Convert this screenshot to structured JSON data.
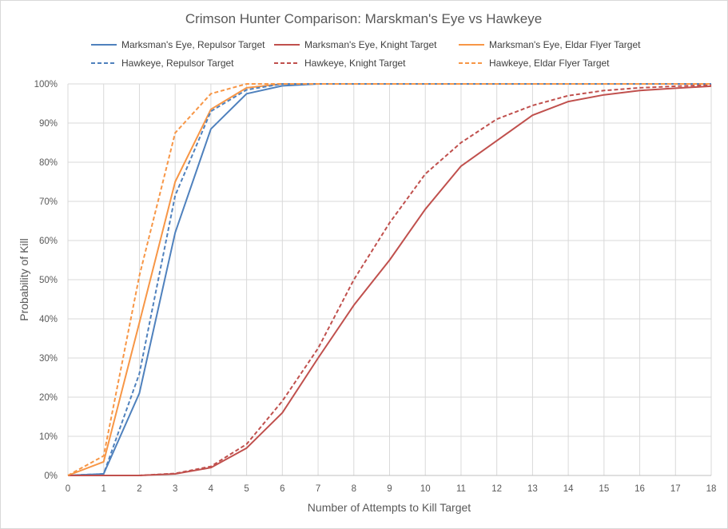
{
  "chart_data": {
    "type": "line",
    "title": "Crimson Hunter Comparison: Marskman's Eye vs Hawkeye",
    "xlabel": "Number of Attempts to Kill Target",
    "ylabel": "Probability of Kill",
    "x": [
      0,
      1,
      2,
      3,
      4,
      5,
      6,
      7,
      8,
      9,
      10,
      11,
      12,
      13,
      14,
      15,
      16,
      17,
      18
    ],
    "x_ticks": [
      "0",
      "1",
      "2",
      "3",
      "4",
      "5",
      "6",
      "7",
      "8",
      "9",
      "10",
      "11",
      "12",
      "13",
      "14",
      "15",
      "16",
      "17",
      "18"
    ],
    "xlim": [
      0,
      18
    ],
    "ylim": [
      0,
      100
    ],
    "y_ticks": [
      "0%",
      "10%",
      "20%",
      "30%",
      "40%",
      "50%",
      "60%",
      "70%",
      "80%",
      "90%",
      "100%"
    ],
    "grid": "both",
    "legend_position": "top",
    "series": [
      {
        "name": "Marksman's Eye, Repulsor Target",
        "color": "#4f81bd",
        "dash": "solid",
        "values": [
          0,
          0.4,
          21,
          62,
          88.5,
          97.5,
          99.5,
          100,
          100,
          100,
          100,
          100,
          100,
          100,
          100,
          100,
          100,
          100,
          100
        ]
      },
      {
        "name": "Marksman's Eye, Knight Target",
        "color": "#c0504d",
        "dash": "solid",
        "values": [
          0,
          0,
          0,
          0.4,
          2,
          7,
          16,
          30,
          43.5,
          55,
          68,
          79,
          85.5,
          92,
          95.5,
          97.2,
          98.3,
          98.9,
          99.4
        ]
      },
      {
        "name": "Marksman's Eye, Eldar Flyer Target",
        "color": "#f79646",
        "dash": "solid",
        "values": [
          0,
          3.5,
          39,
          75,
          93.5,
          99,
          100,
          100,
          100,
          100,
          100,
          100,
          100,
          100,
          100,
          100,
          100,
          100,
          100
        ]
      },
      {
        "name": "Hawkeye, Repulsor Target",
        "color": "#4f81bd",
        "dash": "dashed",
        "values": [
          0,
          0.4,
          26,
          71.5,
          93,
          98.5,
          100,
          100,
          100,
          100,
          100,
          100,
          100,
          100,
          100,
          100,
          100,
          100,
          100
        ]
      },
      {
        "name": "Hawkeye, Knight Target",
        "color": "#c0504d",
        "dash": "dashed",
        "values": [
          0,
          0,
          0,
          0.5,
          2.3,
          8,
          19,
          32.5,
          50,
          64.5,
          77,
          85,
          91,
          94.5,
          97,
          98.3,
          99,
          99.4,
          99.7
        ]
      },
      {
        "name": "Hawkeye, Eldar Flyer Target",
        "color": "#f79646",
        "dash": "dashed",
        "values": [
          0,
          5,
          51,
          87.5,
          97.5,
          100,
          100,
          100,
          100,
          100,
          100,
          100,
          100,
          100,
          100,
          100,
          100,
          100,
          100
        ]
      }
    ]
  }
}
